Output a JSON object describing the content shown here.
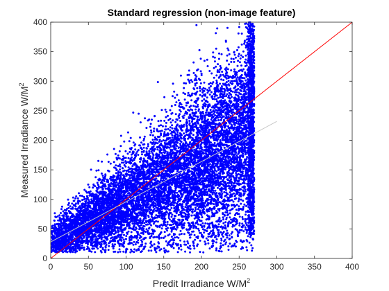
{
  "chart_data": {
    "type": "scatter",
    "title": "Standard regression (non-image feature)",
    "xlabel": "Predit Irradiance W/M",
    "xlabel_sup": "2",
    "ylabel": "Measured Irradiance W/M",
    "ylabel_sup": "2",
    "xlim": [
      0,
      400
    ],
    "ylim": [
      0,
      400
    ],
    "xticks": [
      0,
      50,
      100,
      150,
      200,
      250,
      300,
      350,
      400
    ],
    "yticks": [
      0,
      50,
      100,
      150,
      200,
      250,
      300,
      350,
      400
    ],
    "grid": false,
    "box": true,
    "scatter_color": "#0000ff",
    "scatter_cluster": {
      "x_range": [
        0,
        270
      ],
      "y_range": [
        10,
        400
      ],
      "trend": "measured ≈ 0.68 × predicted + 28, wide spread increasing with x",
      "point_count_approx": 20000
    },
    "lines": [
      {
        "name": "identity",
        "color": "#ff0000",
        "x": [
          0,
          400
        ],
        "y": [
          0,
          400
        ]
      },
      {
        "name": "fit",
        "color": "#c8c8c8",
        "x": [
          0,
          300
        ],
        "y": [
          28,
          232
        ]
      }
    ]
  }
}
